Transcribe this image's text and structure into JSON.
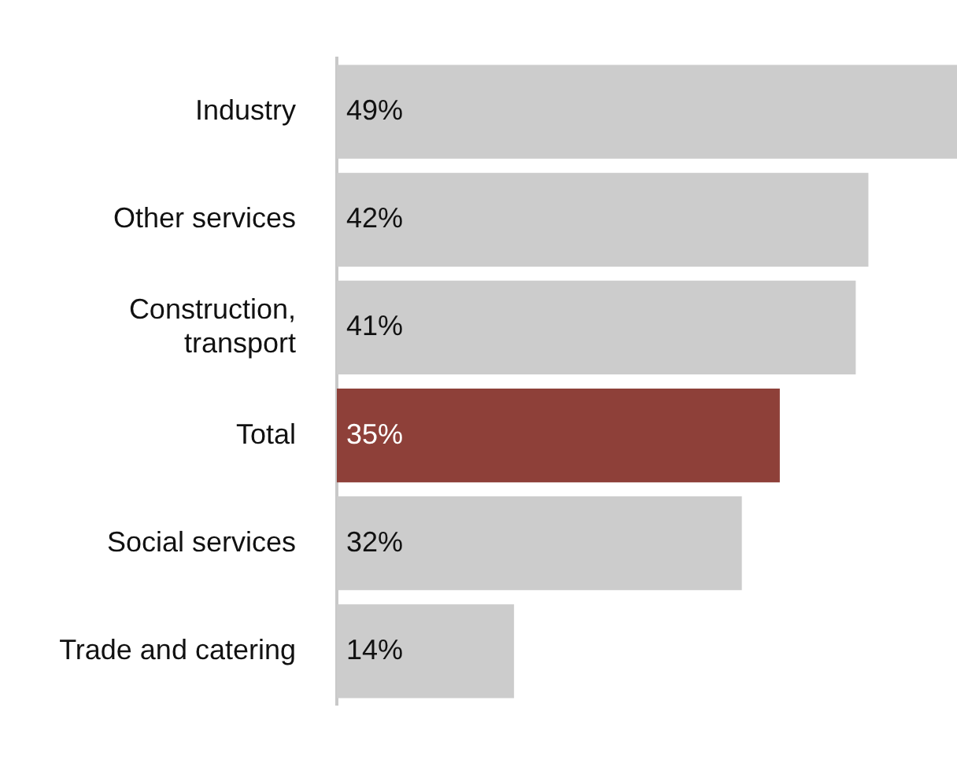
{
  "chart_data": {
    "type": "bar",
    "orientation": "horizontal",
    "categories": [
      "Industry",
      "Other services",
      "Construction, transport",
      "Total",
      "Social services",
      "Trade and catering"
    ],
    "values": [
      49,
      42,
      41,
      35,
      32,
      14
    ],
    "colors": [
      "#cccccc",
      "#cccccc",
      "#cccccc",
      "#8e4039",
      "#cccccc",
      "#cccccc"
    ],
    "value_labels": [
      "49%",
      "42%",
      "41%",
      "35%",
      "32%",
      "14%"
    ],
    "xlim": [
      0,
      49
    ],
    "tick_labels": "y"
  }
}
